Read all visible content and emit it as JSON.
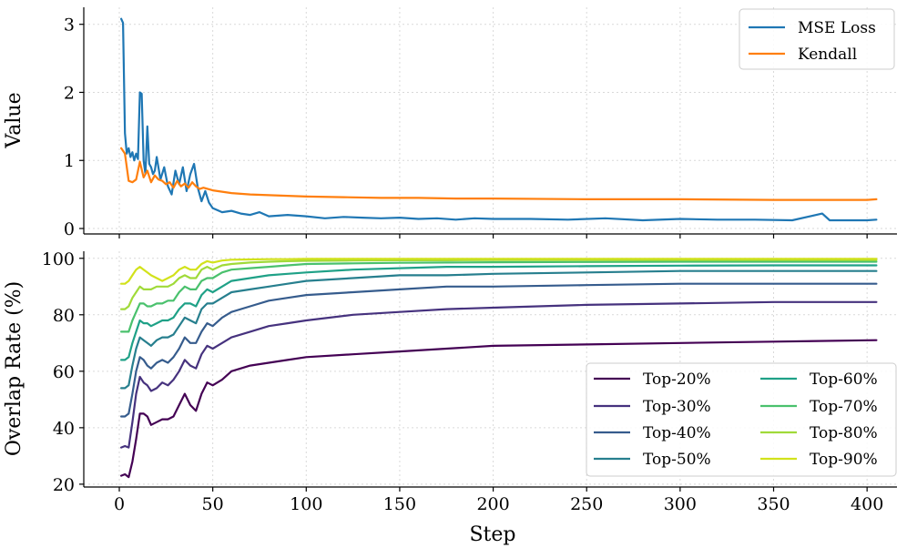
{
  "chart_data": [
    {
      "type": "line",
      "ylabel": "Value",
      "xlim": [
        -19,
        416
      ],
      "ylim": [
        -0.08,
        3.25
      ],
      "xticks": [
        0,
        50,
        100,
        150,
        200,
        250,
        300,
        350,
        400
      ],
      "yticks": [
        0,
        1,
        2,
        3
      ],
      "grid": true,
      "legend_position": "top-right",
      "series": [
        {
          "name": "MSE Loss",
          "color": "#1f77b4",
          "x": [
            1,
            2,
            3,
            4,
            5,
            6,
            7,
            8,
            9,
            10,
            11,
            12,
            13,
            14,
            15,
            16,
            17,
            18,
            19,
            20,
            22,
            24,
            26,
            28,
            30,
            32,
            34,
            36,
            38,
            40,
            42,
            44,
            46,
            48,
            50,
            55,
            60,
            65,
            70,
            75,
            80,
            90,
            100,
            110,
            120,
            130,
            140,
            150,
            160,
            170,
            180,
            190,
            200,
            220,
            240,
            260,
            280,
            300,
            320,
            340,
            360,
            376,
            380,
            400,
            405
          ],
          "y": [
            3.08,
            3.02,
            1.4,
            1.1,
            1.18,
            1.05,
            1.12,
            1.0,
            1.1,
            1.02,
            2.0,
            1.98,
            1.0,
            0.8,
            1.5,
            0.95,
            0.9,
            0.8,
            0.85,
            1.05,
            0.72,
            0.9,
            0.62,
            0.5,
            0.85,
            0.65,
            0.9,
            0.55,
            0.8,
            0.95,
            0.6,
            0.4,
            0.55,
            0.38,
            0.3,
            0.24,
            0.26,
            0.22,
            0.2,
            0.24,
            0.18,
            0.2,
            0.18,
            0.15,
            0.17,
            0.16,
            0.15,
            0.16,
            0.14,
            0.15,
            0.13,
            0.15,
            0.14,
            0.14,
            0.13,
            0.15,
            0.12,
            0.14,
            0.13,
            0.13,
            0.12,
            0.22,
            0.12,
            0.12,
            0.13
          ]
        },
        {
          "name": "Kendall",
          "color": "#ff7f0e",
          "x": [
            1,
            3,
            5,
            7,
            9,
            11,
            13,
            15,
            17,
            19,
            21,
            23,
            25,
            27,
            29,
            31,
            33,
            35,
            37,
            39,
            41,
            43,
            45,
            50,
            60,
            70,
            80,
            90,
            100,
            120,
            140,
            160,
            180,
            200,
            250,
            300,
            350,
            400,
            405
          ],
          "y": [
            1.18,
            1.1,
            0.7,
            0.68,
            0.72,
            0.98,
            0.75,
            0.85,
            0.68,
            0.78,
            0.72,
            0.7,
            0.65,
            0.68,
            0.6,
            0.7,
            0.62,
            0.66,
            0.6,
            0.68,
            0.62,
            0.58,
            0.6,
            0.56,
            0.52,
            0.5,
            0.49,
            0.48,
            0.47,
            0.46,
            0.45,
            0.45,
            0.44,
            0.44,
            0.43,
            0.43,
            0.42,
            0.42,
            0.43
          ]
        }
      ]
    },
    {
      "type": "line",
      "ylabel": "Overlap Rate (%)",
      "xlabel": "Step",
      "xlim": [
        -19,
        416
      ],
      "ylim": [
        19,
        102.5
      ],
      "xticks": [
        0,
        50,
        100,
        150,
        200,
        250,
        300,
        350,
        400
      ],
      "yticks": [
        20,
        40,
        60,
        80,
        100
      ],
      "grid": true,
      "legend_position": "bottom-right",
      "legend_columns": 2,
      "x": [
        1,
        3,
        5,
        7,
        9,
        11,
        13,
        15,
        17,
        20,
        23,
        26,
        29,
        32,
        35,
        38,
        41,
        44,
        47,
        50,
        55,
        60,
        70,
        80,
        90,
        100,
        125,
        150,
        175,
        200,
        250,
        300,
        350,
        405
      ],
      "series": [
        {
          "name": "Top-20%",
          "color": "#440154",
          "values": [
            23,
            23.5,
            22.5,
            28,
            36,
            45,
            45,
            44,
            41,
            42,
            43,
            43,
            44,
            48,
            52,
            48,
            46,
            52,
            56,
            55,
            57,
            60,
            62,
            63,
            64,
            65,
            66,
            67,
            68,
            69,
            69.5,
            70,
            70.5,
            71
          ]
        },
        {
          "name": "Top-30%",
          "color": "#46327e",
          "values": [
            33,
            33.5,
            33,
            42,
            52,
            58,
            56,
            55,
            53,
            54,
            56,
            55,
            57,
            60,
            64,
            62,
            61,
            66,
            69,
            68,
            70,
            72,
            74,
            76,
            77,
            78,
            80,
            81,
            82,
            82.5,
            83.5,
            84,
            84.5,
            84.5
          ]
        },
        {
          "name": "Top-40%",
          "color": "#365c8d",
          "values": [
            44,
            44,
            45,
            52,
            60,
            65,
            64,
            62,
            61,
            63,
            64,
            63,
            65,
            68,
            72,
            70,
            70,
            74,
            77,
            76,
            79,
            81,
            83,
            85,
            86,
            87,
            88,
            89,
            90,
            90,
            90.5,
            91,
            91,
            91
          ]
        },
        {
          "name": "Top-50%",
          "color": "#277f8e",
          "values": [
            54,
            54,
            55,
            62,
            68,
            72,
            71,
            70,
            69,
            71,
            72,
            72,
            73,
            76,
            79,
            78,
            77,
            82,
            84,
            84,
            86,
            88,
            89,
            90,
            91,
            92,
            93,
            94,
            94,
            94.5,
            95,
            95.5,
            95.5,
            95.5
          ]
        },
        {
          "name": "Top-60%",
          "color": "#1fa187",
          "values": [
            64,
            64,
            65,
            70,
            74,
            78,
            77,
            77,
            76,
            77,
            78,
            78,
            79,
            82,
            84,
            84,
            83,
            87,
            89,
            88,
            90,
            92,
            93,
            94,
            94.5,
            95,
            96,
            96.5,
            97,
            97,
            97.2,
            97.4,
            97.5,
            97.5
          ]
        },
        {
          "name": "Top-70%",
          "color": "#4ac16d",
          "values": [
            74,
            74,
            74,
            78,
            81,
            84,
            84,
            83,
            83,
            84,
            84,
            85,
            85,
            88,
            90,
            89,
            89,
            92,
            93,
            93,
            95,
            96,
            96.5,
            97,
            97.5,
            98,
            98.2,
            98.4,
            98.5,
            98.6,
            98.7,
            98.8,
            98.8,
            98.8
          ]
        },
        {
          "name": "Top-80%",
          "color": "#a0da39",
          "values": [
            82,
            82,
            83,
            86,
            88,
            90,
            89,
            89,
            89,
            90,
            90,
            90,
            91,
            93,
            94,
            93,
            93,
            96,
            97,
            96,
            97.5,
            98,
            98.5,
            98.8,
            99,
            99.1,
            99.2,
            99.3,
            99.3,
            99.4,
            99.4,
            99.4,
            99.4,
            99.4
          ]
        },
        {
          "name": "Top-90%",
          "color": "#d2e21b",
          "values": [
            91,
            91,
            92,
            94,
            96,
            97,
            96,
            95,
            94,
            93,
            92,
            93,
            94,
            96,
            97,
            96,
            96,
            98,
            99,
            98.5,
            99.2,
            99.5,
            99.6,
            99.7,
            99.7,
            99.8,
            99.8,
            99.8,
            99.8,
            99.8,
            99.8,
            99.8,
            99.8,
            99.8
          ]
        }
      ]
    }
  ]
}
